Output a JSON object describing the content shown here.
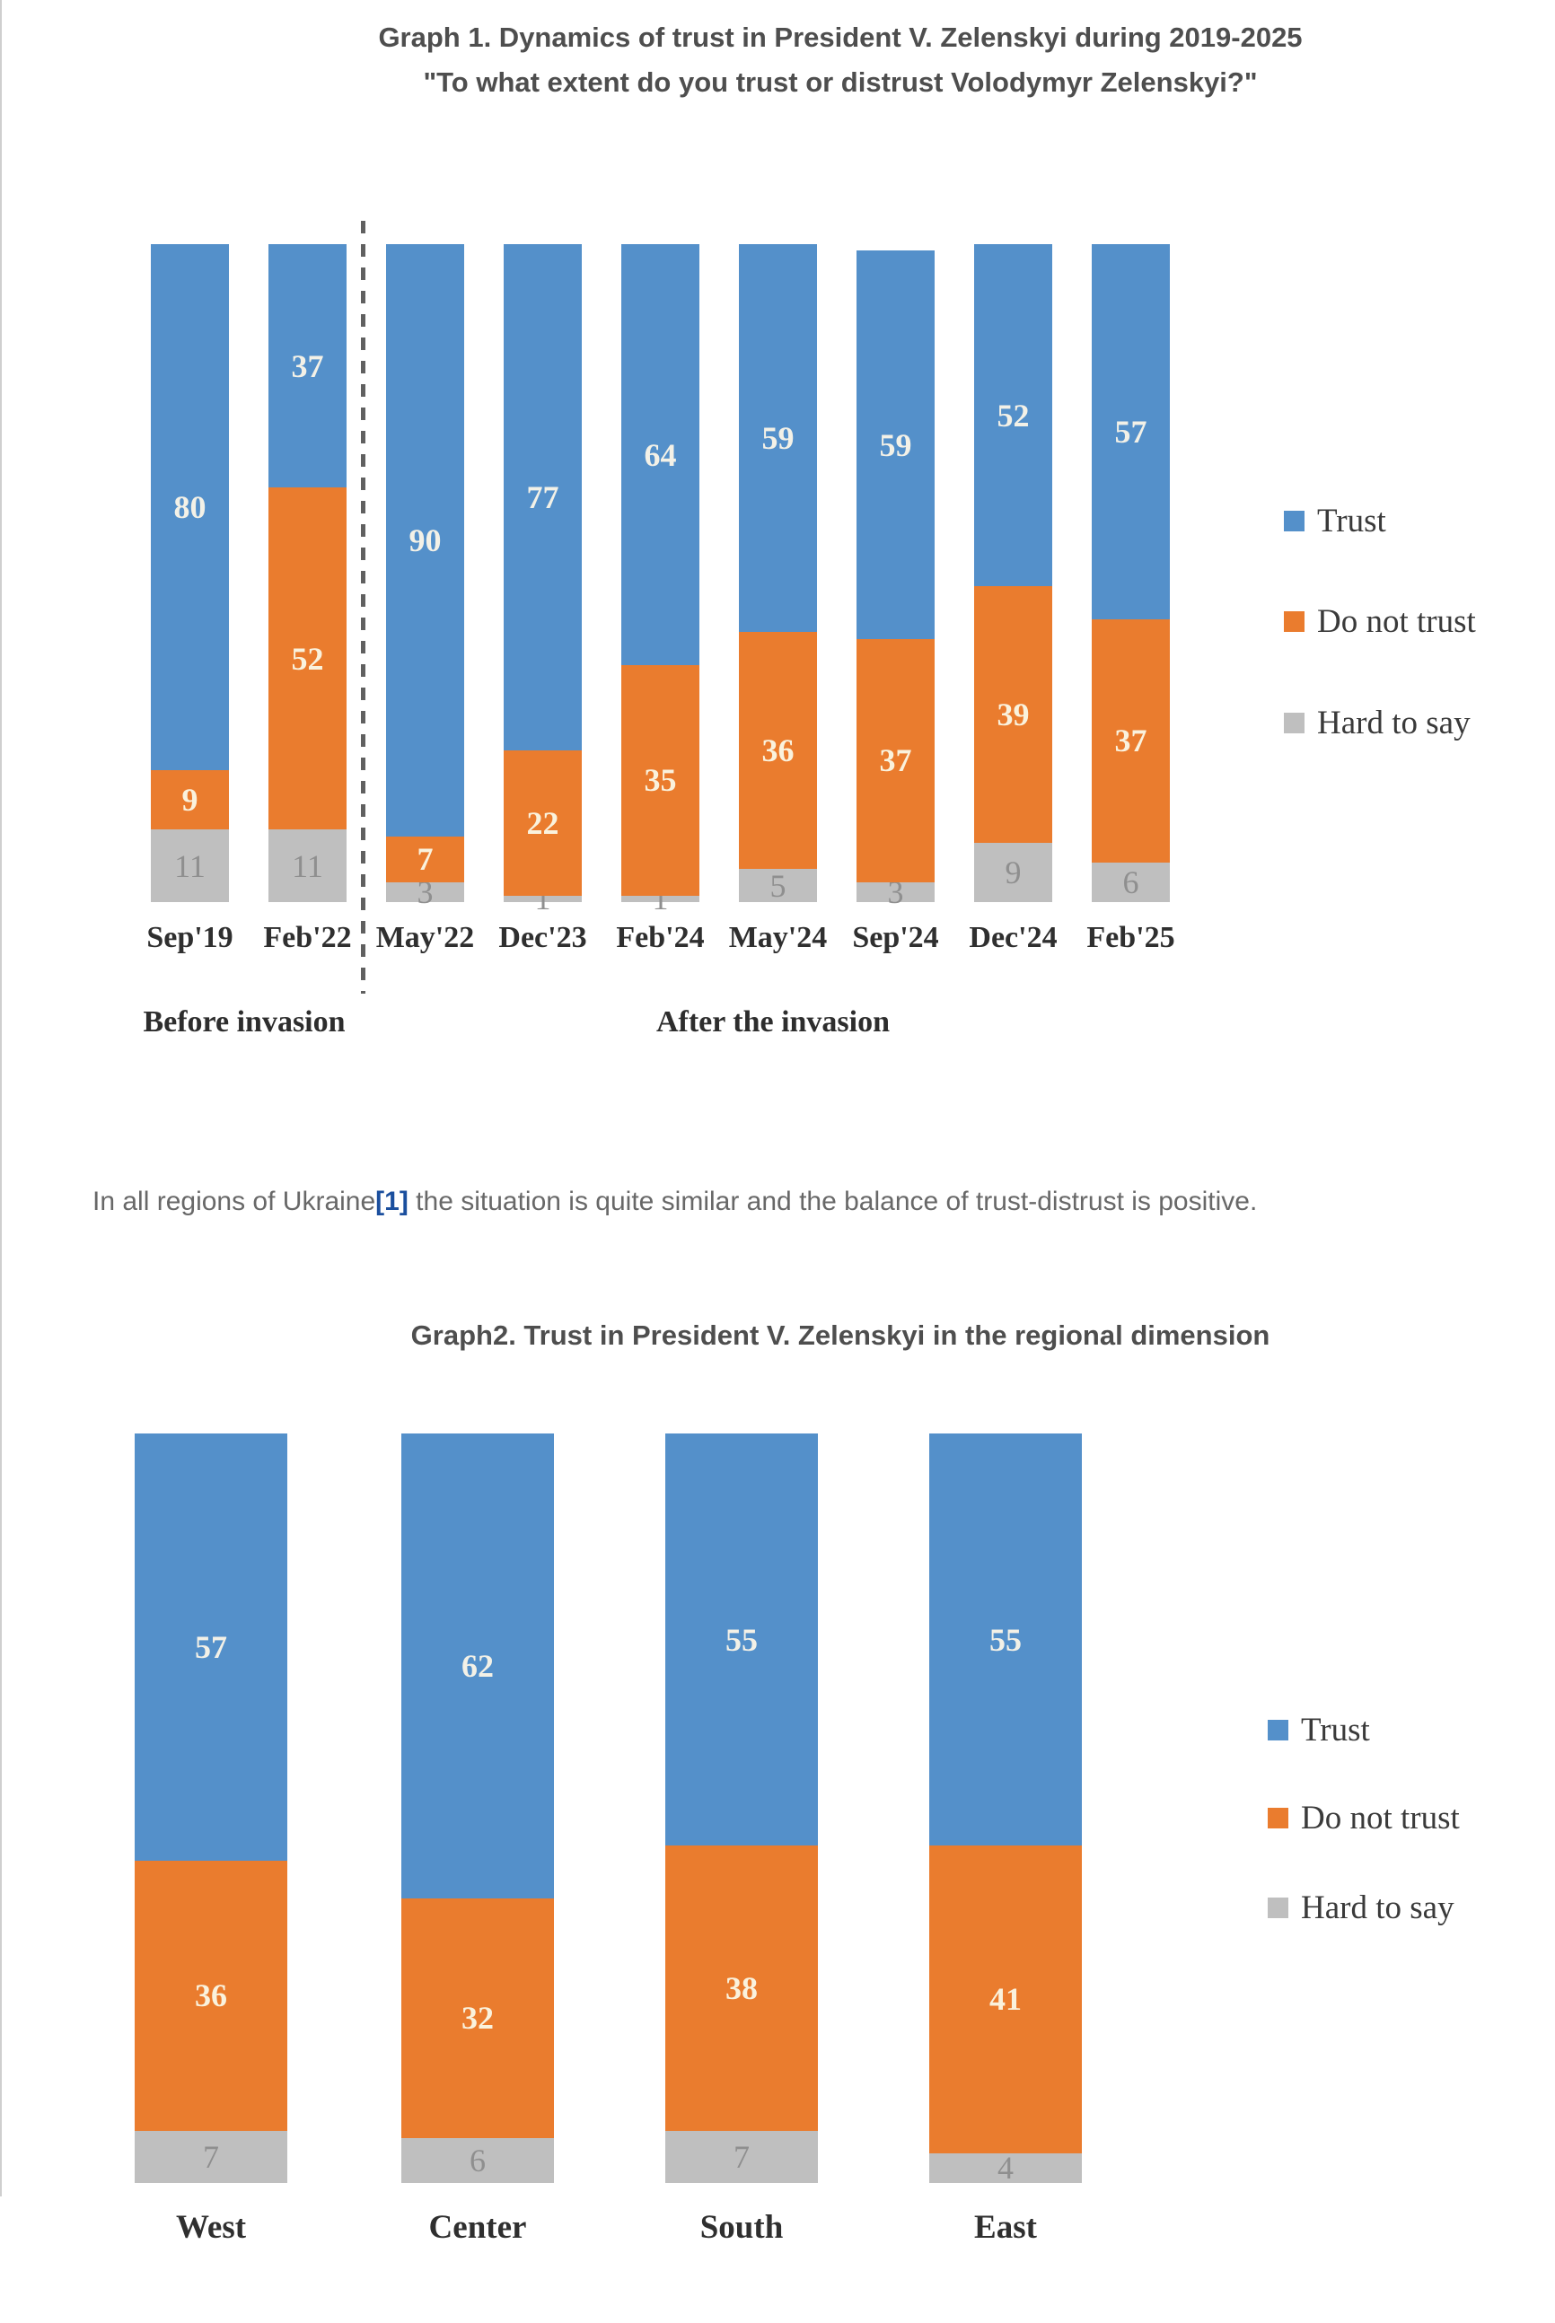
{
  "paragraph": {
    "prefix": "In all regions of Ukraine",
    "footnote_marker": "[1]",
    "suffix": " the situation is quite similar and the balance of trust-distrust is positive."
  },
  "legend": {
    "position": "right",
    "items": [
      {
        "label": "Trust",
        "color": "#5490CA"
      },
      {
        "label": "Do not trust",
        "color": "#EA7C2E"
      },
      {
        "label": "Hard to say",
        "color": "#BFBFBF"
      }
    ]
  },
  "chart_data": [
    {
      "id": "graph1",
      "type": "bar",
      "stacked": true,
      "orientation": "vertical",
      "title": "Graph 1. Dynamics of trust in President V. Zelenskyi during 2019-2025",
      "subtitle": "\"To what extent do you trust or distrust Volodymyr Zelenskyi?\"",
      "categories": [
        "Sep'19",
        "Feb'22",
        "May'22",
        "Dec'23",
        "Feb'24",
        "May'24",
        "Sep'24",
        "Dec'24",
        "Feb'25"
      ],
      "series": [
        {
          "name": "Trust",
          "color": "#5490CA",
          "label_color": "#F3F1E7",
          "label_bold": true,
          "values": [
            80,
            37,
            90,
            77,
            64,
            59,
            59,
            52,
            57
          ]
        },
        {
          "name": "Do not trust",
          "color": "#EA7C2E",
          "label_color": "#FAF2DD",
          "label_bold": true,
          "values": [
            9,
            52,
            7,
            22,
            35,
            36,
            37,
            39,
            37
          ]
        },
        {
          "name": "Hard to say",
          "color": "#BFBFBF",
          "label_color": "#8F8F8F",
          "label_bold": false,
          "values": [
            11,
            11,
            3,
            1,
            1,
            5,
            3,
            9,
            6
          ]
        }
      ],
      "ylim": [
        0,
        100
      ],
      "grid": false,
      "legend_position": "right",
      "group_labels": [
        "Before invasion",
        "After the invasion"
      ],
      "divider_after_category": "Feb'22"
    },
    {
      "id": "graph2",
      "type": "bar",
      "stacked": true,
      "orientation": "vertical",
      "title": "Graph2. Trust in President V. Zelenskyi in the regional dimension",
      "categories": [
        "West",
        "Center",
        "South",
        "East"
      ],
      "series": [
        {
          "name": "Trust",
          "color": "#5490CA",
          "label_color": "#F3F1E7",
          "label_bold": true,
          "values": [
            57,
            62,
            55,
            55
          ]
        },
        {
          "name": "Do not trust",
          "color": "#EA7C2E",
          "label_color": "#FAF2DD",
          "label_bold": true,
          "values": [
            36,
            32,
            38,
            41
          ]
        },
        {
          "name": "Hard to say",
          "color": "#BFBFBF",
          "label_color": "#8F8F8F",
          "label_bold": false,
          "values": [
            7,
            6,
            7,
            4
          ]
        }
      ],
      "ylim": [
        0,
        100
      ],
      "grid": false,
      "legend_position": "right"
    }
  ]
}
